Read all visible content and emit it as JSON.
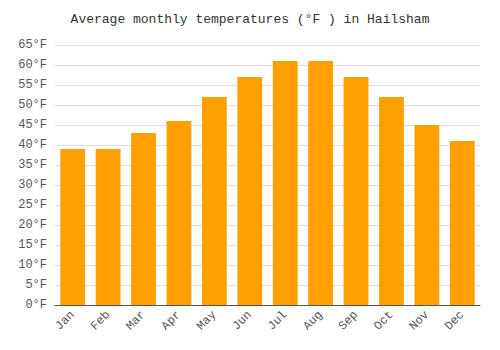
{
  "chart_data": {
    "type": "bar",
    "title": "Average monthly temperatures (°F ) in Hailsham",
    "categories": [
      "Jan",
      "Feb",
      "Mar",
      "Apr",
      "May",
      "Jun",
      "Jul",
      "Aug",
      "Sep",
      "Oct",
      "Nov",
      "Dec"
    ],
    "values": [
      39,
      39,
      43,
      46,
      52,
      57,
      61,
      61,
      57,
      52,
      45,
      41
    ],
    "color": "#FFA000",
    "ylim": [
      0,
      65
    ],
    "yticks": [
      {
        "value": 0,
        "label": "0°F"
      },
      {
        "value": 5,
        "label": "5°F"
      },
      {
        "value": 10,
        "label": "10°F"
      },
      {
        "value": 15,
        "label": "15°F"
      },
      {
        "value": 20,
        "label": "20°F"
      },
      {
        "value": 25,
        "label": "25°F"
      },
      {
        "value": 30,
        "label": "30°F"
      },
      {
        "value": 35,
        "label": "35°F"
      },
      {
        "value": 40,
        "label": "40°F"
      },
      {
        "value": 45,
        "label": "45°F"
      },
      {
        "value": 50,
        "label": "50°F"
      },
      {
        "value": 55,
        "label": "55°F"
      },
      {
        "value": 60,
        "label": "60°F"
      },
      {
        "value": 65,
        "label": "65°F"
      }
    ],
    "grid": true
  }
}
